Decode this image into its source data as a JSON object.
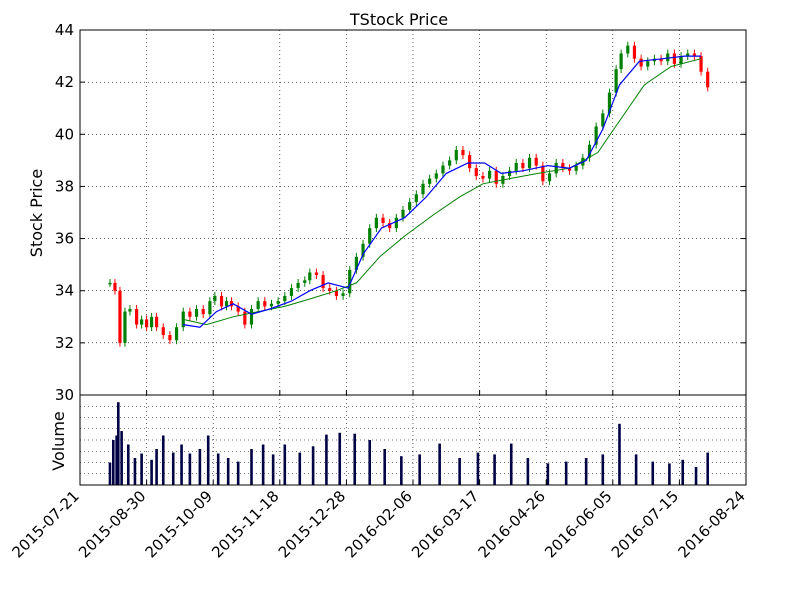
{
  "chart_data": {
    "type": "candlestick",
    "title": "TStock Price",
    "ylabel": "Stock Price",
    "volume_label": "Volume",
    "xlim": [
      "2015-07-21",
      "2016-08-24"
    ],
    "ylim": [
      30,
      44
    ],
    "x_ticks": [
      "2015-07-21",
      "2015-08-30",
      "2015-10-09",
      "2015-11-18",
      "2015-12-28",
      "2016-02-06",
      "2016-03-17",
      "2016-04-26",
      "2016-06-05",
      "2016-07-15",
      "2016-08-24"
    ],
    "y_ticks": [
      "30",
      "32",
      "34",
      "36",
      "38",
      "40",
      "42",
      "44"
    ],
    "grid": true,
    "colors": {
      "up": "#008000",
      "down": "#ff0000",
      "ma_short": "#0000ff",
      "ma_long": "#008000",
      "volume": "#000044"
    },
    "series": [
      {
        "name": "price",
        "points": [
          [
            "2015-08-08",
            34.3
          ],
          [
            "2015-08-11",
            34.0
          ],
          [
            "2015-08-14",
            32.0
          ],
          [
            "2015-08-17",
            33.2
          ],
          [
            "2015-08-20",
            33.3
          ],
          [
            "2015-08-24",
            32.7
          ],
          [
            "2015-08-27",
            32.9
          ],
          [
            "2015-08-30",
            32.6
          ],
          [
            "2015-09-02",
            33.0
          ],
          [
            "2015-09-05",
            32.6
          ],
          [
            "2015-09-09",
            32.3
          ],
          [
            "2015-09-13",
            32.1
          ],
          [
            "2015-09-17",
            32.6
          ],
          [
            "2015-09-21",
            33.2
          ],
          [
            "2015-09-25",
            33.0
          ],
          [
            "2015-09-29",
            33.3
          ],
          [
            "2015-10-03",
            33.1
          ],
          [
            "2015-10-07",
            33.6
          ],
          [
            "2015-10-10",
            33.8
          ],
          [
            "2015-10-14",
            33.4
          ],
          [
            "2015-10-17",
            33.6
          ],
          [
            "2015-10-20",
            33.4
          ],
          [
            "2015-10-24",
            33.2
          ],
          [
            "2015-10-28",
            32.7
          ],
          [
            "2015-11-01",
            33.3
          ],
          [
            "2015-11-05",
            33.6
          ],
          [
            "2015-11-09",
            33.4
          ],
          [
            "2015-11-13",
            33.5
          ],
          [
            "2015-11-17",
            33.6
          ],
          [
            "2015-11-21",
            33.8
          ],
          [
            "2015-11-25",
            34.1
          ],
          [
            "2015-11-29",
            34.3
          ],
          [
            "2015-12-03",
            34.4
          ],
          [
            "2015-12-06",
            34.7
          ],
          [
            "2015-12-10",
            34.6
          ],
          [
            "2015-12-14",
            34.1
          ],
          [
            "2015-12-18",
            34.0
          ],
          [
            "2015-12-22",
            33.8
          ],
          [
            "2015-12-26",
            33.9
          ],
          [
            "2015-12-30",
            34.8
          ],
          [
            "2016-01-03",
            35.3
          ],
          [
            "2016-01-07",
            35.8
          ],
          [
            "2016-01-11",
            36.4
          ],
          [
            "2016-01-15",
            36.8
          ],
          [
            "2016-01-19",
            36.6
          ],
          [
            "2016-01-23",
            36.4
          ],
          [
            "2016-01-27",
            36.8
          ],
          [
            "2016-01-31",
            37.1
          ],
          [
            "2016-02-04",
            37.4
          ],
          [
            "2016-02-08",
            37.7
          ],
          [
            "2016-02-12",
            38.1
          ],
          [
            "2016-02-16",
            38.3
          ],
          [
            "2016-02-20",
            38.5
          ],
          [
            "2016-02-24",
            38.8
          ],
          [
            "2016-02-28",
            39.0
          ],
          [
            "2016-03-03",
            39.4
          ],
          [
            "2016-03-07",
            39.2
          ],
          [
            "2016-03-11",
            38.7
          ],
          [
            "2016-03-15",
            38.4
          ],
          [
            "2016-03-19",
            38.3
          ],
          [
            "2016-03-23",
            38.6
          ],
          [
            "2016-03-27",
            38.1
          ],
          [
            "2016-03-31",
            38.4
          ],
          [
            "2016-04-04",
            38.6
          ],
          [
            "2016-04-08",
            38.9
          ],
          [
            "2016-04-12",
            38.7
          ],
          [
            "2016-04-16",
            39.1
          ],
          [
            "2016-04-20",
            38.8
          ],
          [
            "2016-04-24",
            38.2
          ],
          [
            "2016-04-28",
            38.5
          ],
          [
            "2016-05-02",
            38.9
          ],
          [
            "2016-05-06",
            38.7
          ],
          [
            "2016-05-10",
            38.6
          ],
          [
            "2016-05-14",
            38.8
          ],
          [
            "2016-05-18",
            39.1
          ],
          [
            "2016-05-22",
            39.6
          ],
          [
            "2016-05-26",
            40.3
          ],
          [
            "2016-05-30",
            40.8
          ],
          [
            "2016-06-03",
            41.6
          ],
          [
            "2016-06-07",
            42.5
          ],
          [
            "2016-06-10",
            43.1
          ],
          [
            "2016-06-14",
            43.4
          ],
          [
            "2016-06-18",
            42.9
          ],
          [
            "2016-06-22",
            42.6
          ],
          [
            "2016-06-26",
            42.8
          ],
          [
            "2016-06-30",
            42.9
          ],
          [
            "2016-07-04",
            42.8
          ],
          [
            "2016-07-08",
            43.1
          ],
          [
            "2016-07-12",
            42.7
          ],
          [
            "2016-07-16",
            43.0
          ],
          [
            "2016-07-20",
            43.1
          ],
          [
            "2016-07-24",
            43.0
          ],
          [
            "2016-07-28",
            42.4
          ],
          [
            "2016-08-01",
            41.8
          ]
        ]
      },
      {
        "name": "moving average (short)",
        "points": [
          [
            "2015-09-21",
            32.7
          ],
          [
            "2015-10-01",
            32.6
          ],
          [
            "2015-10-11",
            33.2
          ],
          [
            "2015-10-21",
            33.5
          ],
          [
            "2015-11-01",
            33.1
          ],
          [
            "2015-11-12",
            33.3
          ],
          [
            "2015-11-25",
            33.6
          ],
          [
            "2015-12-06",
            34.0
          ],
          [
            "2015-12-17",
            34.3
          ],
          [
            "2015-12-29",
            34.1
          ],
          [
            "2016-01-07",
            35.4
          ],
          [
            "2016-01-18",
            36.4
          ],
          [
            "2016-02-01",
            36.8
          ],
          [
            "2016-02-14",
            37.6
          ],
          [
            "2016-02-26",
            38.5
          ],
          [
            "2016-03-10",
            38.9
          ],
          [
            "2016-03-20",
            38.9
          ],
          [
            "2016-03-30",
            38.5
          ],
          [
            "2016-04-12",
            38.6
          ],
          [
            "2016-04-27",
            38.8
          ],
          [
            "2016-05-10",
            38.7
          ],
          [
            "2016-05-20",
            39.0
          ],
          [
            "2016-05-30",
            40.2
          ],
          [
            "2016-06-09",
            41.9
          ],
          [
            "2016-06-21",
            42.8
          ],
          [
            "2016-07-05",
            42.9
          ],
          [
            "2016-07-18",
            43.0
          ],
          [
            "2016-07-28",
            43.0
          ]
        ]
      },
      {
        "name": "moving average (long)",
        "points": [
          [
            "2015-09-21",
            32.9
          ],
          [
            "2015-10-05",
            32.7
          ],
          [
            "2015-10-21",
            33.0
          ],
          [
            "2015-11-05",
            33.2
          ],
          [
            "2015-11-21",
            33.4
          ],
          [
            "2015-12-07",
            33.7
          ],
          [
            "2015-12-22",
            34.0
          ],
          [
            "2016-01-03",
            34.3
          ],
          [
            "2016-01-17",
            35.3
          ],
          [
            "2016-02-01",
            36.1
          ],
          [
            "2016-02-18",
            36.9
          ],
          [
            "2016-03-05",
            37.6
          ],
          [
            "2016-03-19",
            38.1
          ],
          [
            "2016-04-04",
            38.3
          ],
          [
            "2016-04-21",
            38.5
          ],
          [
            "2016-05-10",
            38.7
          ],
          [
            "2016-05-27",
            39.3
          ],
          [
            "2016-06-10",
            40.6
          ],
          [
            "2016-06-24",
            41.9
          ],
          [
            "2016-07-10",
            42.6
          ],
          [
            "2016-07-28",
            42.9
          ]
        ]
      }
    ],
    "volume": [
      [
        "2015-08-08",
        0.25
      ],
      [
        "2015-08-10",
        0.5
      ],
      [
        "2015-08-12",
        0.55
      ],
      [
        "2015-08-13",
        0.92
      ],
      [
        "2015-08-15",
        0.6
      ],
      [
        "2015-08-19",
        0.45
      ],
      [
        "2015-08-23",
        0.3
      ],
      [
        "2015-08-27",
        0.35
      ],
      [
        "2015-09-02",
        0.28
      ],
      [
        "2015-09-05",
        0.4
      ],
      [
        "2015-09-09",
        0.55
      ],
      [
        "2015-09-15",
        0.36
      ],
      [
        "2015-09-20",
        0.45
      ],
      [
        "2015-09-25",
        0.35
      ],
      [
        "2015-10-01",
        0.4
      ],
      [
        "2015-10-06",
        0.55
      ],
      [
        "2015-10-12",
        0.35
      ],
      [
        "2015-10-18",
        0.3
      ],
      [
        "2015-10-24",
        0.26
      ],
      [
        "2015-11-01",
        0.4
      ],
      [
        "2015-11-08",
        0.45
      ],
      [
        "2015-11-14",
        0.34
      ],
      [
        "2015-11-21",
        0.45
      ],
      [
        "2015-11-30",
        0.36
      ],
      [
        "2015-12-08",
        0.43
      ],
      [
        "2015-12-16",
        0.56
      ],
      [
        "2015-12-24",
        0.58
      ],
      [
        "2016-01-02",
        0.57
      ],
      [
        "2016-01-11",
        0.5
      ],
      [
        "2016-01-20",
        0.4
      ],
      [
        "2016-01-30",
        0.32
      ],
      [
        "2016-02-10",
        0.34
      ],
      [
        "2016-02-22",
        0.46
      ],
      [
        "2016-03-05",
        0.3
      ],
      [
        "2016-03-16",
        0.36
      ],
      [
        "2016-03-26",
        0.34
      ],
      [
        "2016-04-05",
        0.46
      ],
      [
        "2016-04-15",
        0.3
      ],
      [
        "2016-04-27",
        0.24
      ],
      [
        "2016-05-08",
        0.26
      ],
      [
        "2016-05-20",
        0.3
      ],
      [
        "2016-05-30",
        0.34
      ],
      [
        "2016-06-09",
        0.68
      ],
      [
        "2016-06-19",
        0.34
      ],
      [
        "2016-06-29",
        0.26
      ],
      [
        "2016-07-09",
        0.24
      ],
      [
        "2016-07-17",
        0.28
      ],
      [
        "2016-07-25",
        0.2
      ],
      [
        "2016-08-01",
        0.36
      ]
    ]
  }
}
